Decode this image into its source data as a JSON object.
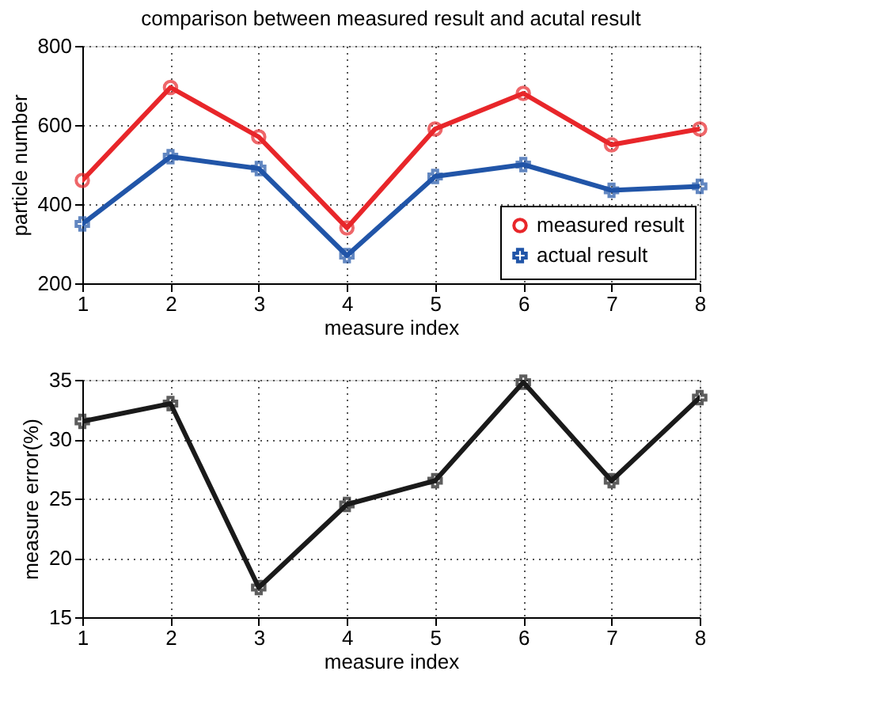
{
  "chart_data": [
    {
      "type": "line",
      "title": "comparison between measured result and acutal result",
      "xlabel": "measure index",
      "ylabel": "particle number",
      "x": [
        1,
        2,
        3,
        4,
        5,
        6,
        7,
        8
      ],
      "xlim": [
        1,
        8
      ],
      "xticks": [
        1,
        2,
        3,
        4,
        5,
        6,
        7,
        8
      ],
      "ylim": [
        200,
        800
      ],
      "yticks": [
        200,
        400,
        600,
        800
      ],
      "grid": true,
      "legend": "bottom right",
      "line_style": "solid",
      "series": [
        {
          "name": "measured result",
          "color": "#e8262a",
          "marker": "circle",
          "values": [
            460,
            695,
            570,
            340,
            590,
            680,
            550,
            590
          ]
        },
        {
          "name": "actual result",
          "color": "#2155a8",
          "marker": "cross",
          "values": [
            350,
            520,
            490,
            270,
            470,
            500,
            435,
            445
          ]
        }
      ]
    },
    {
      "type": "line",
      "xlabel": "measure index",
      "ylabel": "measure error(%)",
      "x": [
        1,
        2,
        3,
        4,
        5,
        6,
        7,
        8
      ],
      "xlim": [
        1,
        8
      ],
      "xticks": [
        1,
        2,
        3,
        4,
        5,
        6,
        7,
        8
      ],
      "ylim": [
        15,
        35
      ],
      "yticks": [
        15,
        20,
        25,
        30,
        35
      ],
      "grid": true,
      "line_style": "solid",
      "series": [
        {
          "color": "#1a1a1a",
          "marker": "cross",
          "values": [
            31.5,
            33,
            17.5,
            24.5,
            26.5,
            34.8,
            26.5,
            33.5
          ]
        }
      ]
    }
  ]
}
